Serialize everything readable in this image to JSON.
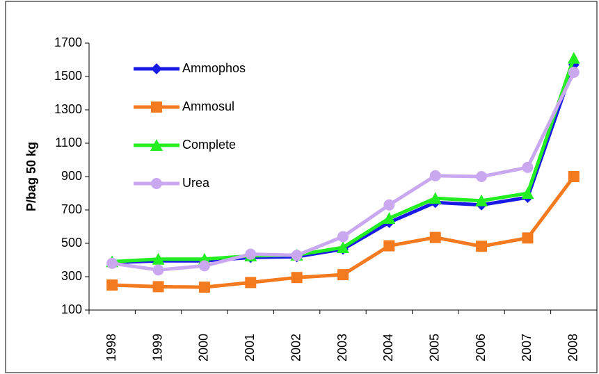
{
  "chart_data": {
    "type": "line",
    "y_label": "P/bag 50 kg",
    "categories": [
      "1998",
      "1999",
      "2000",
      "2001",
      "2002",
      "2003",
      "2004",
      "2005",
      "2006",
      "2007",
      "2008"
    ],
    "series": [
      {
        "name": "Ammophos",
        "color": "#1a1ae6",
        "marker": "diamond",
        "values": [
          385,
          395,
          395,
          415,
          420,
          465,
          625,
          745,
          730,
          775,
          1570
        ]
      },
      {
        "name": "Ammosul",
        "color": "#f47a20",
        "marker": "square",
        "values": [
          250,
          240,
          237,
          265,
          295,
          312,
          485,
          535,
          482,
          532,
          900
        ]
      },
      {
        "name": "Complete",
        "color": "#22ee22",
        "marker": "triangle",
        "values": [
          390,
          405,
          405,
          425,
          430,
          475,
          650,
          770,
          755,
          800,
          1610
        ]
      },
      {
        "name": "Urea",
        "color": "#c9a8f0",
        "marker": "circle",
        "values": [
          380,
          340,
          365,
          435,
          428,
          540,
          730,
          905,
          900,
          955,
          1525
        ]
      }
    ],
    "ylim": [
      100,
      1700
    ],
    "yticks": [
      100,
      300,
      500,
      700,
      900,
      1100,
      1300,
      1500,
      1700
    ],
    "grid": false,
    "legend": "upper left"
  }
}
